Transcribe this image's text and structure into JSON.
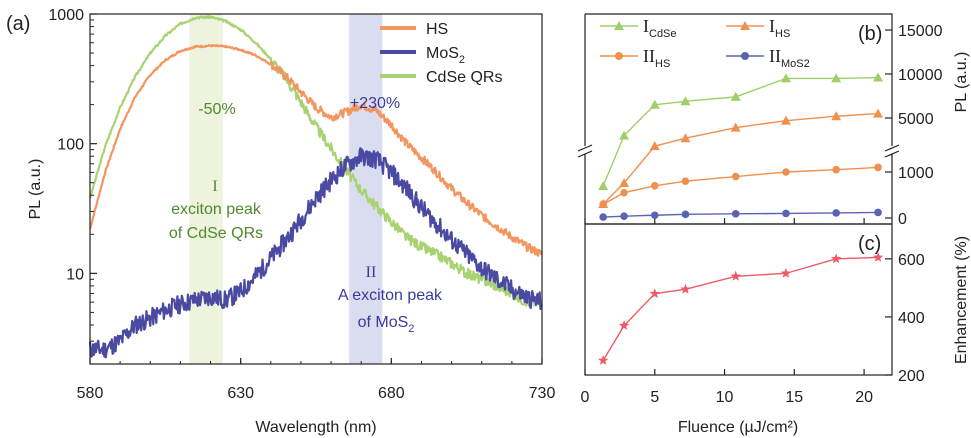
{
  "chart_data": [
    {
      "panel_label": "(a)",
      "type": "line",
      "xlabel": "Wavelength (nm)",
      "ylabel": "PL (a.u.)",
      "xlim": [
        580,
        730
      ],
      "ylim": [
        2,
        1000
      ],
      "yscale": "log",
      "xticks": [
        "580",
        "630",
        "680",
        "730"
      ],
      "yticks": [
        "10",
        "100",
        "1000"
      ],
      "grid": false,
      "legend_position": "top-right",
      "colors": {
        "HS": "#f3955f",
        "MoS2": "#4b4aa3",
        "CdSe": "#a9d372",
        "band_I": "#edf3dc",
        "band_II": "#dadcf0"
      },
      "legend": [
        {
          "key": "HS",
          "text": "HS",
          "sub": ""
        },
        {
          "key": "MoS2",
          "text": "MoS",
          "sub": "2"
        },
        {
          "key": "CdSe",
          "text": "CdSe QRs",
          "sub": ""
        }
      ],
      "bands": [
        {
          "key": "I",
          "x0": 613,
          "x1": 624
        },
        {
          "key": "II",
          "x0": 666,
          "x1": 677
        }
      ],
      "annotations": {
        "pct_I": "-50%",
        "pct_II": "+230%",
        "roman_I": "I",
        "roman_II": "II",
        "label_I": [
          "exciton peak",
          "of CdSe QRs"
        ],
        "label_II_1": "A exciton peak",
        "label_II_2": {
          "text": "of MoS",
          "sub": "2"
        }
      },
      "series": [
        {
          "name": "CdSe QRs",
          "key": "CdSe",
          "noise": 0.05,
          "seed": 3,
          "x": [
            580,
            585,
            590,
            595,
            600,
            605,
            610,
            615,
            620,
            625,
            630,
            635,
            640,
            645,
            650,
            655,
            660,
            665,
            670,
            675,
            680,
            685,
            690,
            695,
            700,
            705,
            710,
            715,
            720,
            725,
            730
          ],
          "y": [
            38,
            95,
            190,
            330,
            500,
            680,
            840,
            940,
            950,
            880,
            760,
            600,
            450,
            320,
            210,
            135,
            92,
            62,
            44,
            33,
            25,
            19,
            16,
            14,
            12,
            10,
            9,
            8,
            7,
            6,
            6
          ]
        },
        {
          "name": "HS",
          "key": "HS",
          "noise": 0.04,
          "seed": 7,
          "x": [
            580,
            585,
            590,
            595,
            600,
            605,
            610,
            615,
            620,
            625,
            630,
            635,
            640,
            645,
            650,
            655,
            660,
            665,
            670,
            675,
            680,
            685,
            690,
            695,
            700,
            705,
            710,
            715,
            720,
            725,
            730
          ],
          "y": [
            22,
            60,
            130,
            230,
            340,
            440,
            520,
            560,
            570,
            560,
            530,
            480,
            410,
            330,
            250,
            190,
            160,
            175,
            200,
            180,
            140,
            100,
            78,
            60,
            45,
            35,
            28,
            23,
            19,
            16,
            14
          ]
        },
        {
          "name": "MoS2",
          "key": "MoS2",
          "noise": 0.09,
          "seed": 11,
          "x": [
            580,
            585,
            590,
            595,
            600,
            605,
            610,
            615,
            620,
            625,
            630,
            635,
            640,
            645,
            650,
            655,
            660,
            665,
            670,
            675,
            680,
            685,
            690,
            695,
            700,
            705,
            710,
            715,
            720,
            725,
            730
          ],
          "y": [
            2.6,
            2.6,
            3.0,
            4.0,
            4.5,
            5.2,
            5.8,
            6.2,
            6.6,
            6.2,
            7.2,
            9.5,
            13,
            18,
            26,
            38,
            52,
            68,
            80,
            76,
            60,
            45,
            32,
            24,
            18,
            14,
            11,
            9,
            7.5,
            6.5,
            6
          ]
        }
      ]
    },
    {
      "panel_label": "(b)",
      "type": "line",
      "ylabel": "PL (a.u.)",
      "y_axis_side": "right",
      "y_axis_break": true,
      "xlim": [
        0,
        22
      ],
      "yticks": [
        "0",
        "1000",
        "5000",
        "10000",
        "15000"
      ],
      "grid": false,
      "legend_position": "top",
      "legend": [
        {
          "key": "I_CdSe",
          "main": "I",
          "sub": "CdSe"
        },
        {
          "key": "I_HS",
          "main": "I",
          "sub": "HS"
        },
        {
          "key": "II_HS",
          "main": "II",
          "sub": "HS"
        },
        {
          "key": "II_MoS2",
          "main": "II",
          "sub": "MoS2"
        }
      ],
      "series": [
        {
          "name": "I_CdSe",
          "key": "I_CdSe",
          "marker": "triangle",
          "color": "#9fcf6a",
          "x": [
            1.3,
            2.8,
            5.0,
            7.2,
            10.8,
            14.4,
            18.0,
            21.0
          ],
          "y": [
            0,
            3000,
            6500,
            6900,
            7400,
            9500,
            9500,
            9600
          ]
        },
        {
          "name": "I_HS",
          "key": "I_HS",
          "marker": "triangle",
          "color": "#f0904f",
          "x": [
            1.3,
            2.8,
            5.0,
            7.2,
            10.8,
            14.4,
            18.0,
            21.0
          ],
          "y": [
            0,
            0,
            1800,
            2700,
            3900,
            4700,
            5200,
            5500
          ]
        },
        {
          "name": "II_HS",
          "key": "II_HS",
          "marker": "circle",
          "color": "#f0904f",
          "x": [
            1.3,
            2.8,
            5.0,
            7.2,
            10.8,
            14.4,
            18.0,
            21.0
          ],
          "y": [
            300,
            550,
            700,
            800,
            900,
            1000,
            1050,
            1100
          ]
        },
        {
          "name": "II_MoS2",
          "key": "II_MoS2",
          "marker": "circle",
          "color": "#5a63b3",
          "x": [
            1.3,
            2.8,
            5.0,
            7.2,
            10.8,
            14.4,
            18.0,
            21.0
          ],
          "y": [
            20,
            40,
            60,
            80,
            90,
            100,
            110,
            120
          ]
        }
      ]
    },
    {
      "panel_label": "(c)",
      "type": "line",
      "xlabel": "Fluence (µJ/cm²)",
      "ylabel": "Enhancement (%)",
      "y_axis_side": "right",
      "xlim": [
        0,
        22
      ],
      "ylim": [
        200,
        720
      ],
      "xticks": [
        "0",
        "5",
        "10",
        "15",
        "20"
      ],
      "yticks": [
        "200",
        "400",
        "600"
      ],
      "grid": false,
      "series": [
        {
          "name": "Enhancement",
          "marker": "star",
          "color": "#ef5a66",
          "x": [
            1.3,
            2.8,
            5.0,
            7.2,
            10.8,
            14.4,
            18.0,
            21.0
          ],
          "y": [
            250,
            370,
            480,
            495,
            540,
            550,
            600,
            605
          ]
        }
      ]
    }
  ]
}
